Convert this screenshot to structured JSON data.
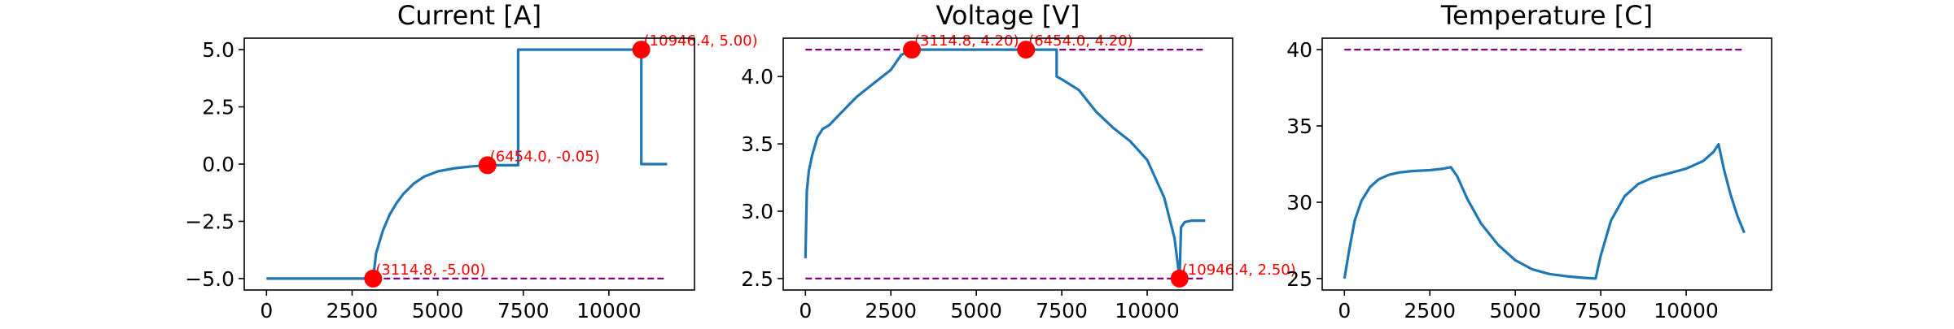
{
  "chart_data": [
    {
      "type": "line",
      "title": "Current [A]",
      "xlabel": "",
      "ylabel": "",
      "xlim": [
        -650,
        12500
      ],
      "ylim": [
        -5.5,
        5.5
      ],
      "xticks": [
        0,
        2500,
        5000,
        7500,
        10000
      ],
      "xtick_labels": [
        "0",
        "2500",
        "5000",
        "7500",
        "10000"
      ],
      "yticks": [
        -5.0,
        -2.5,
        0.0,
        2.5,
        5.0
      ],
      "ytick_labels": [
        "−5.0",
        "−2.5",
        "0.0",
        "2.5",
        "5.0"
      ],
      "grid": false,
      "series": [
        {
          "color": "#1f77b4",
          "x": [
            0,
            3114.8,
            3200,
            3400,
            3600,
            3800,
            4000,
            4300,
            4600,
            5000,
            5500,
            6000,
            6454,
            7350,
            7350,
            10946.4,
            10946.4,
            11700
          ],
          "y": [
            -5.0,
            -5.0,
            -3.9,
            -2.9,
            -2.2,
            -1.7,
            -1.3,
            -0.85,
            -0.55,
            -0.32,
            -0.18,
            -0.1,
            -0.05,
            -0.05,
            5.0,
            5.0,
            0.0,
            0.0
          ]
        }
      ],
      "limit_lines": [
        {
          "y": -5.0,
          "x": [
            0,
            11700
          ],
          "color": "#800080",
          "style": "dashed"
        }
      ],
      "points": [
        {
          "x": 3114.8,
          "y": -5.0,
          "label": "(3114.8, -5.00)"
        },
        {
          "x": 6454.0,
          "y": -0.05,
          "label": "(6454.0, -0.05)"
        },
        {
          "x": 10946.4,
          "y": 5.0,
          "label": "(10946.4, 5.00)"
        }
      ]
    },
    {
      "type": "line",
      "title": "Voltage [V]",
      "xlabel": "",
      "ylabel": "",
      "xlim": [
        -650,
        12500
      ],
      "ylim": [
        2.415,
        4.285
      ],
      "xticks": [
        0,
        2500,
        5000,
        7500,
        10000
      ],
      "xtick_labels": [
        "0",
        "2500",
        "5000",
        "7500",
        "10000"
      ],
      "yticks": [
        2.5,
        3.0,
        3.5,
        4.0
      ],
      "ytick_labels": [
        "2.5",
        "3.0",
        "3.5",
        "4.0"
      ],
      "grid": false,
      "series": [
        {
          "color": "#1f77b4",
          "x": [
            0,
            40,
            100,
            200,
            350,
            500,
            700,
            1000,
            1500,
            2000,
            2500,
            2800,
            3114.8,
            6454,
            7350,
            7350,
            7500,
            8000,
            8500,
            9000,
            9500,
            10000,
            10500,
            10800,
            10946.4,
            10990,
            11100,
            11300,
            11700
          ],
          "y": [
            2.65,
            3.15,
            3.3,
            3.42,
            3.55,
            3.61,
            3.64,
            3.72,
            3.85,
            3.95,
            4.05,
            4.16,
            4.2,
            4.2,
            4.2,
            4.0,
            3.98,
            3.9,
            3.74,
            3.62,
            3.52,
            3.38,
            3.1,
            2.8,
            2.5,
            2.88,
            2.92,
            2.93,
            2.93
          ]
        }
      ],
      "limit_lines": [
        {
          "y": 4.2,
          "x": [
            0,
            11700
          ],
          "color": "#800080",
          "style": "dashed"
        },
        {
          "y": 2.5,
          "x": [
            0,
            11700
          ],
          "color": "#800080",
          "style": "dashed"
        }
      ],
      "points": [
        {
          "x": 3114.8,
          "y": 4.2,
          "label": "(3114.8, 4.20)"
        },
        {
          "x": 6454.0,
          "y": 4.2,
          "label": "(6454.0, 4.20)"
        },
        {
          "x": 10946.4,
          "y": 2.5,
          "label": "(10946.4, 2.50)"
        }
      ]
    },
    {
      "type": "line",
      "title": "Temperature [C]",
      "xlabel": "",
      "ylabel": "",
      "xlim": [
        -650,
        12500
      ],
      "ylim": [
        24.25,
        40.75
      ],
      "xticks": [
        0,
        2500,
        5000,
        7500,
        10000
      ],
      "xtick_labels": [
        "0",
        "2500",
        "5000",
        "7500",
        "10000"
      ],
      "yticks": [
        25,
        30,
        35,
        40
      ],
      "ytick_labels": [
        "25",
        "30",
        "35",
        "40"
      ],
      "grid": false,
      "series": [
        {
          "color": "#1f77b4",
          "x": [
            0,
            150,
            300,
            500,
            750,
            1000,
            1300,
            1600,
            2000,
            2500,
            2900,
            3114.8,
            3300,
            3600,
            4000,
            4500,
            5000,
            5500,
            6000,
            6500,
            7000,
            7350,
            7500,
            7800,
            8200,
            8600,
            9000,
            9500,
            10000,
            10500,
            10800,
            10946.4,
            11100,
            11300,
            11500,
            11700
          ],
          "y": [
            25.0,
            27.0,
            28.8,
            30.1,
            31.0,
            31.5,
            31.8,
            31.95,
            32.05,
            32.1,
            32.2,
            32.3,
            31.7,
            30.2,
            28.6,
            27.2,
            26.2,
            25.6,
            25.3,
            25.15,
            25.05,
            25.0,
            26.5,
            28.8,
            30.4,
            31.2,
            31.6,
            31.9,
            32.2,
            32.7,
            33.3,
            33.8,
            32.2,
            30.5,
            29.1,
            28.0
          ]
        }
      ],
      "limit_lines": [
        {
          "y": 40.0,
          "x": [
            0,
            11700
          ],
          "color": "#800080",
          "style": "dashed"
        }
      ],
      "points": []
    }
  ]
}
